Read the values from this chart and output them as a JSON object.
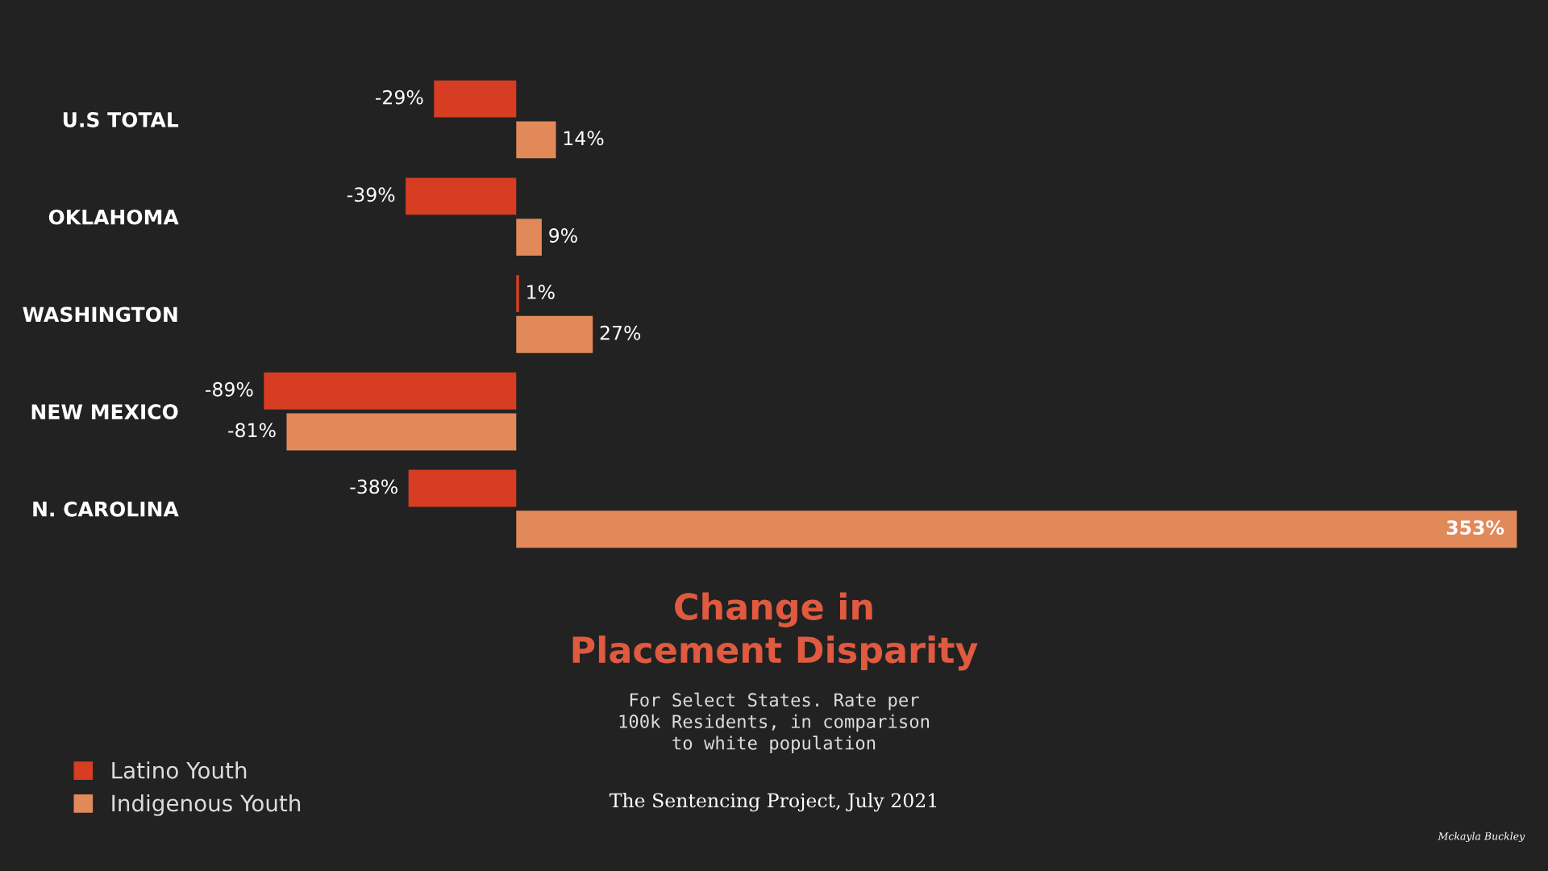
{
  "chart_data": {
    "type": "bar",
    "orientation": "horizontal",
    "title": "Change in\nPlacement Disparity",
    "subtitle": "For Select States. Rate per\n100k Residents, in comparison\nto white population",
    "categories": [
      "U.S TOTAL",
      "OKLAHOMA",
      "WASHINGTON",
      "NEW MEXICO",
      "N. CAROLINA"
    ],
    "series": [
      {
        "name": "Latino Youth",
        "color": "#d63d22",
        "values": [
          -29,
          -39,
          1,
          -89,
          -38
        ],
        "value_labels": [
          "-29%",
          "-39%",
          "1%",
          "-89%",
          "-38%"
        ]
      },
      {
        "name": "Indigenous Youth",
        "color": "#e2895a",
        "values": [
          14,
          9,
          27,
          -81,
          353
        ],
        "value_labels": [
          "14%",
          "9%",
          "27%",
          "-81%",
          "353%"
        ]
      }
    ],
    "legend": "bottom left",
    "annotations": [
      "The Sentencing Project, July 2021",
      "Mckayla Buckley"
    ]
  }
}
